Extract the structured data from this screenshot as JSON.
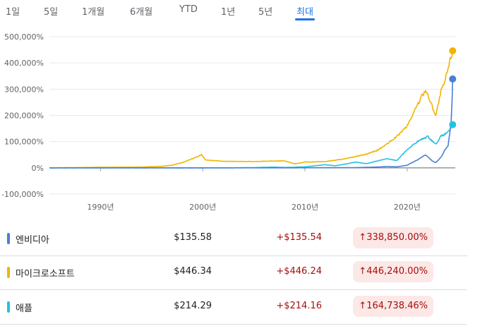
{
  "tabs": [
    {
      "label": "1일",
      "active": false
    },
    {
      "label": "5일",
      "active": false
    },
    {
      "label": "1개월",
      "active": false
    },
    {
      "label": "6개월",
      "active": false
    },
    {
      "label": "YTD",
      "active": false
    },
    {
      "label": "1년",
      "active": false
    },
    {
      "label": "5년",
      "active": false
    },
    {
      "label": "최대",
      "active": true
    }
  ],
  "chart_data": {
    "type": "line",
    "title": "",
    "xlabel": "",
    "ylabel": "",
    "ylim": [
      -100000,
      500000
    ],
    "y_ticks": [
      "-100,000%",
      "0%",
      "100,000%",
      "200,000%",
      "300,000%",
      "400,000%",
      "500,000%"
    ],
    "x_ticks": [
      "1990년",
      "2000년",
      "2010년",
      "2020년"
    ],
    "x_tick_years": [
      1990,
      2000,
      2010,
      2020
    ],
    "grid": true,
    "series": [
      {
        "name": "엔비디아",
        "color": "#4a7fd4",
        "x": [
          1985,
          1999,
          2005,
          2008,
          2010,
          2015,
          2017,
          2018,
          2019,
          2020,
          2021,
          2021.8,
          2022.5,
          2022.8,
          2023.3,
          2023.8,
          2024.0,
          2024.3,
          2024.4,
          2024.45
        ],
        "y": [
          0,
          0,
          200,
          100,
          300,
          1000,
          3000,
          5000,
          4000,
          10000,
          30000,
          50000,
          25000,
          20000,
          40000,
          75000,
          85000,
          170000,
          270000,
          338850
        ]
      },
      {
        "name": "마이크로소프트",
        "color": "#f0b400",
        "x": [
          1985,
          1990,
          1994,
          1996,
          1997,
          1998,
          1999,
          1999.9,
          2000.3,
          2001,
          2002,
          2005,
          2008,
          2009,
          2010,
          2012,
          2014,
          2016,
          2017,
          2018,
          2019,
          2020,
          2021,
          2021.8,
          2022.3,
          2022.8,
          2023.3,
          2023.7,
          2024.0,
          2024.45
        ],
        "y": [
          0,
          2000,
          3000,
          6000,
          10000,
          20000,
          35000,
          50000,
          30000,
          28000,
          25000,
          24000,
          27000,
          15000,
          22000,
          24000,
          35000,
          52000,
          65000,
          90000,
          120000,
          160000,
          240000,
          300000,
          250000,
          200000,
          290000,
          330000,
          380000,
          446240
        ]
      },
      {
        "name": "애플",
        "color": "#24c1e0",
        "x": [
          1985,
          2000,
          2003,
          2005,
          2007,
          2008,
          2009,
          2010,
          2012,
          2013,
          2015,
          2016,
          2018,
          2019,
          2020,
          2021,
          2022,
          2022.8,
          2023.3,
          2023.8,
          2024.0,
          2024.3,
          2024.45
        ],
        "y": [
          0,
          200,
          100,
          1000,
          3000,
          1500,
          2500,
          4000,
          12000,
          8000,
          22000,
          16000,
          35000,
          28000,
          70000,
          100000,
          120000,
          90000,
          120000,
          130000,
          140000,
          150000,
          164738
        ]
      }
    ]
  },
  "rows": [
    {
      "name": "엔비디아",
      "color": "#4a7fd4",
      "price": "$135.58",
      "change": "+$135.54",
      "pct": "338,850.00%"
    },
    {
      "name": "마이크로소프트",
      "color": "#f0b400",
      "price": "$446.34",
      "change": "+$446.24",
      "pct": "446,240.00%"
    },
    {
      "name": "애플",
      "color": "#24c1e0",
      "price": "$214.29",
      "change": "+$214.16",
      "pct": "164,738.46%"
    }
  ],
  "arrow_icon": "arrow-up-icon"
}
